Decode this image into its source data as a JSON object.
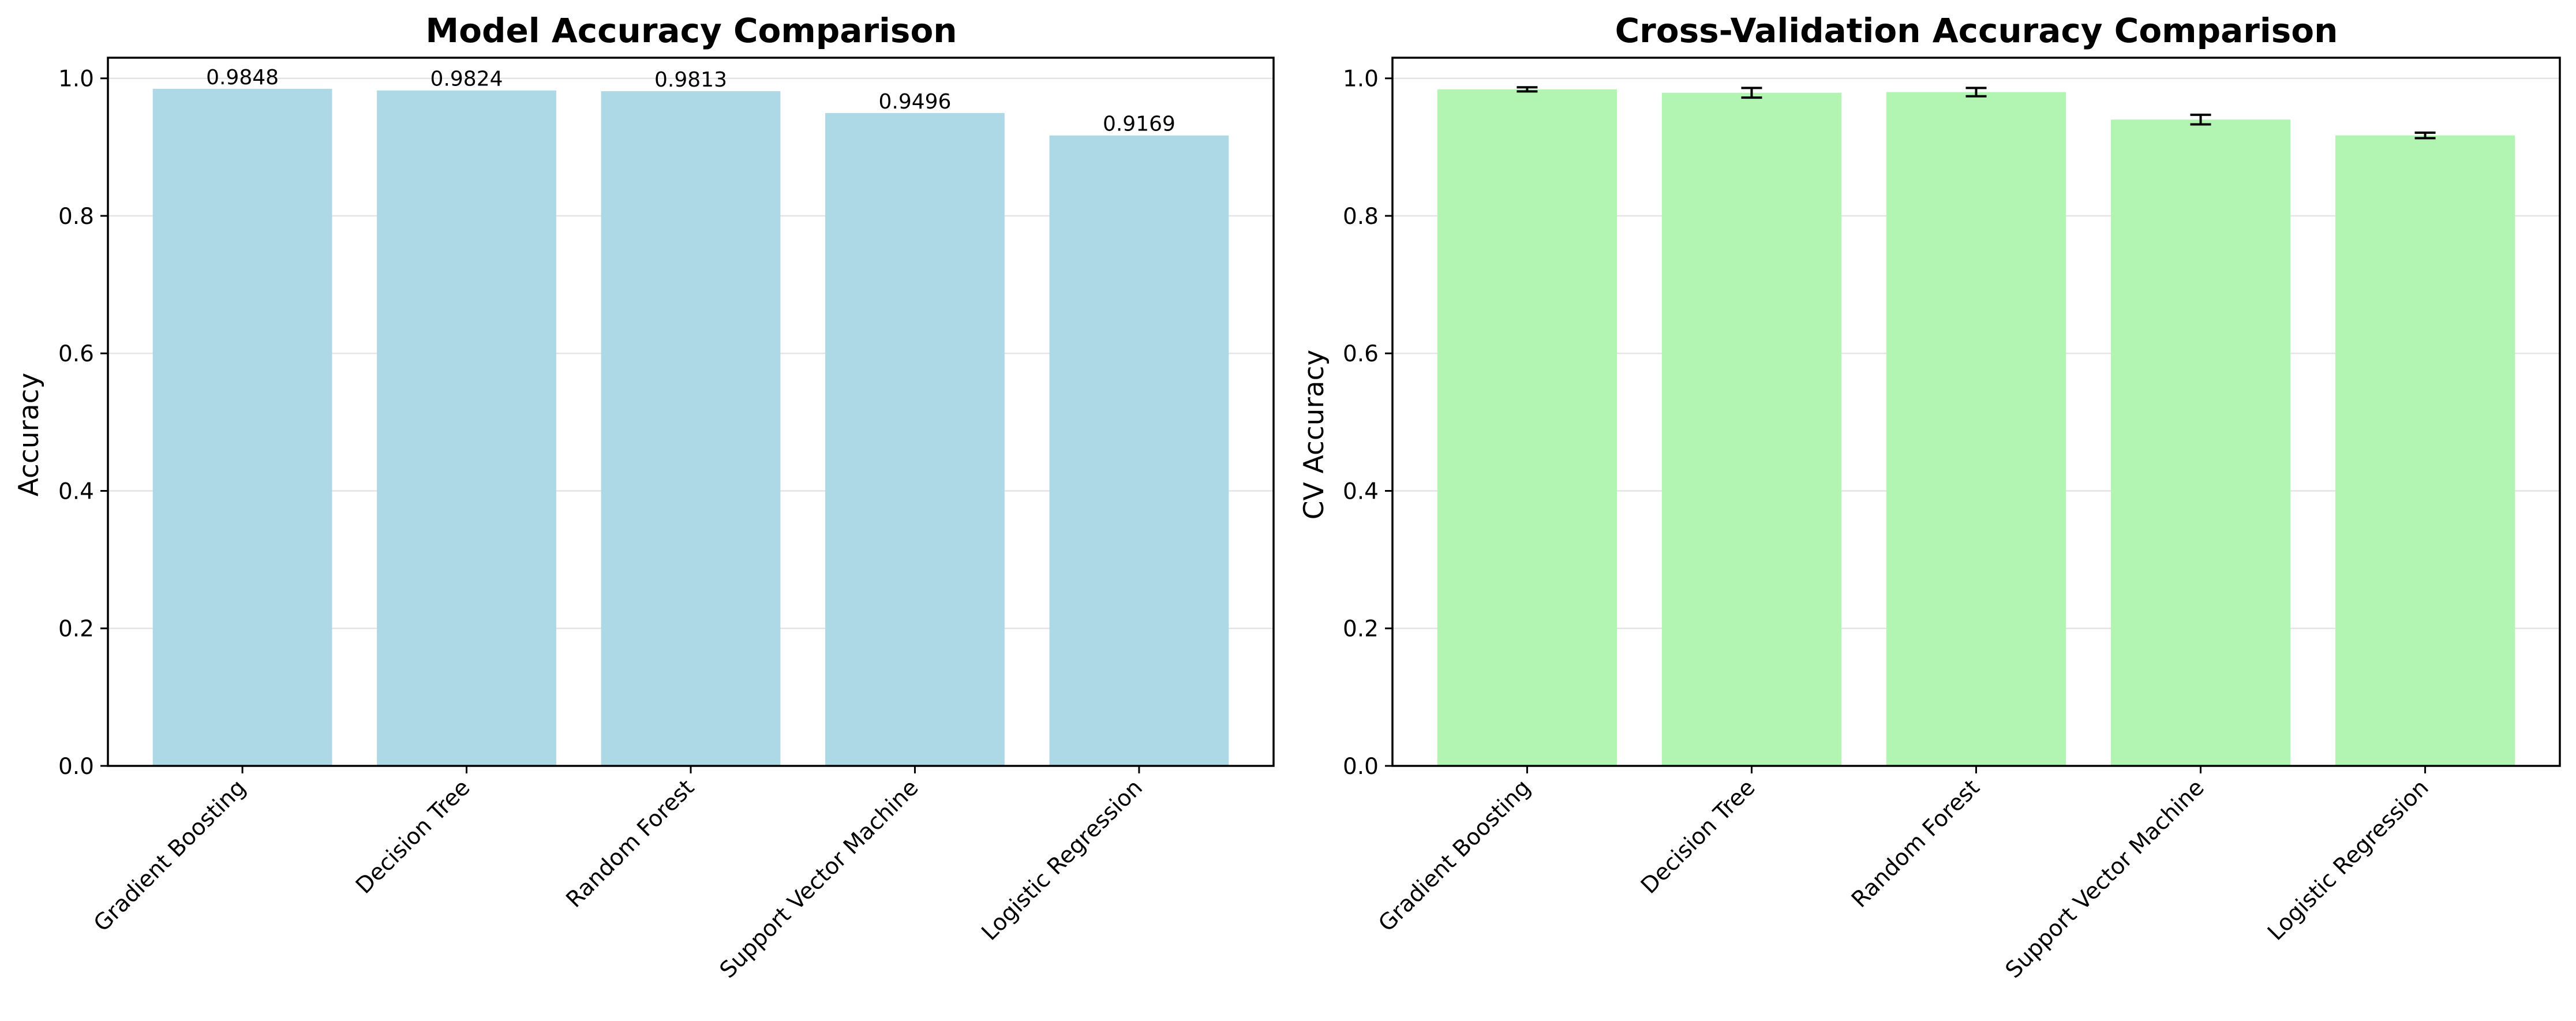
{
  "chart_data": [
    {
      "type": "bar",
      "title": "Model Accuracy Comparison",
      "xlabel": "",
      "ylabel": "Accuracy",
      "categories": [
        "Gradient Boosting",
        "Decision Tree",
        "Random Forest",
        "Support Vector Machine",
        "Logistic Regression"
      ],
      "values": [
        0.9848,
        0.9824,
        0.9813,
        0.9496,
        0.9169
      ],
      "data_labels": [
        "0.9848",
        "0.9824",
        "0.9813",
        "0.9496",
        "0.9169"
      ],
      "ylim": [
        0,
        1.03
      ],
      "yticks": [
        0.0,
        0.2,
        0.4,
        0.6,
        0.8,
        1.0
      ],
      "ytick_labels": [
        "0.0",
        "0.2",
        "0.4",
        "0.6",
        "0.8",
        "1.0"
      ],
      "bar_color": "#add8e6",
      "grid": "y",
      "legend": "none"
    },
    {
      "type": "bar",
      "title": "Cross-Validation Accuracy Comparison",
      "xlabel": "",
      "ylabel": "CV Accuracy",
      "categories": [
        "Gradient Boosting",
        "Decision Tree",
        "Random Forest",
        "Support Vector Machine",
        "Logistic Regression"
      ],
      "values": [
        0.984,
        0.979,
        0.98,
        0.94,
        0.917
      ],
      "errors": [
        0.003,
        0.007,
        0.006,
        0.007,
        0.004
      ],
      "ylim": [
        0,
        1.03
      ],
      "yticks": [
        0.0,
        0.2,
        0.4,
        0.6,
        0.8,
        1.0
      ],
      "ytick_labels": [
        "0.0",
        "0.2",
        "0.4",
        "0.6",
        "0.8",
        "1.0"
      ],
      "bar_color": "#b2f5b2",
      "error_color": "#000000",
      "grid": "y",
      "legend": "none"
    }
  ]
}
